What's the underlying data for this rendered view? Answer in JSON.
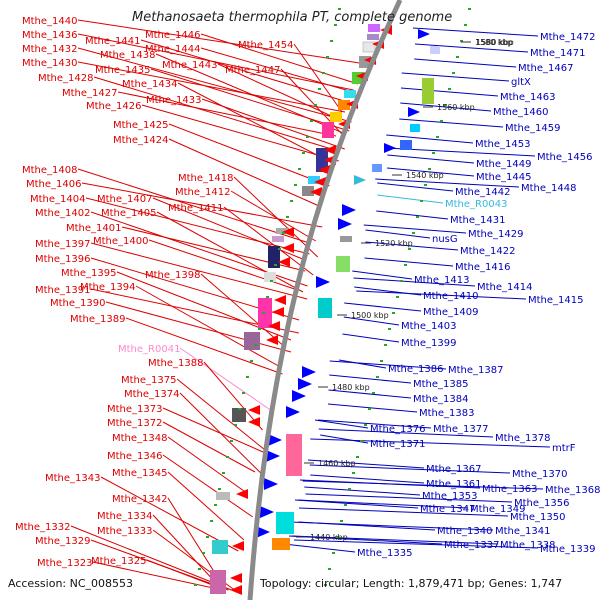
{
  "title": "Methanosaeta thermophila PT, complete genome",
  "footer": {
    "accession": "Accession: NC_008553",
    "topology": "Topology: circular; Length: 1,879,471 bp; Genes: 1,747"
  },
  "colors": {
    "forward_label": "#dd0000",
    "reverse_label": "#0000bb",
    "rna_forward_label": "#ff88cc",
    "rna_reverse_label": "#33bbdd",
    "backbone": "#8a8a8a",
    "tick": "#22aa22"
  },
  "kbp_ticks": [
    "1580 kbp",
    "1560 kbp",
    "1540 kbp",
    "1520 kbp",
    "1500 kbp",
    "1480 kbp",
    "1460 kbp",
    "1440 kbp"
  ],
  "left_labels": [
    "Mthe_1440",
    "Mthe_1446",
    "Mthe_1436",
    "Mthe_1441",
    "Mthe_1454",
    "Mthe_1432",
    "Mthe_1438",
    "Mthe_1444",
    "Mthe_1430",
    "Mthe_1443",
    "Mthe_1435",
    "Mthe_1447",
    "Mthe_1428",
    "Mthe_1434",
    "Mthe_1427",
    "Mthe_1433",
    "Mthe_1426",
    "Mthe_1425",
    "Mthe_1424",
    "Mthe_1408",
    "Mthe_1418",
    "Mthe_1406",
    "Mthe_1412",
    "Mthe_1404",
    "Mthe_1407",
    "Mthe_1411",
    "Mthe_1402",
    "Mthe_1405",
    "Mthe_1401",
    "Mthe_1400",
    "Mthe_1397",
    "Mthe_1396",
    "Mthe_1395",
    "Mthe_1398",
    "Mthe_1394",
    "Mthe_1391",
    "Mthe_1390",
    "Mthe_1389",
    "Mthe_R0041",
    "Mthe_1388",
    "Mthe_1375",
    "Mthe_1374",
    "Mthe_1373",
    "Mthe_1372",
    "Mthe_1348",
    "Mthe_1346",
    "Mthe_1345",
    "Mthe_1343",
    "Mthe_1342",
    "Mthe_1334",
    "Mthe_1333",
    "Mthe_1332",
    "Mthe_1329",
    "Mthe_1325",
    "Mthe_1323"
  ],
  "right_labels": [
    "Mthe_1472",
    "1580 kbp",
    "Mthe_1471",
    "Mthe_1467",
    "gltX",
    "Mthe_1463",
    "Mthe_1460",
    "Mthe_1459",
    "Mthe_1453",
    "Mthe_1456",
    "Mthe_1449",
    "Mthe_1445",
    "Mthe_1448",
    "Mthe_1442",
    "Mthe_R0043",
    "Mthe_1431",
    "Mthe_1429",
    "nusG",
    "Mthe_1422",
    "Mthe_1416",
    "Mthe_1413",
    "Mthe_1414",
    "Mthe_1410",
    "Mthe_1415",
    "Mthe_1409",
    "Mthe_1403",
    "Mthe_1399",
    "Mthe_1386",
    "Mthe_1387",
    "Mthe_1385",
    "Mthe_1384",
    "Mthe_1383",
    "Mthe_1376",
    "Mthe_1377",
    "Mthe_1378",
    "Mthe_1371",
    "mtrF",
    "Mthe_1367",
    "Mthe_1370",
    "Mthe_1361",
    "Mthe_1363",
    "Mthe_1368",
    "Mthe_1353",
    "Mthe_1356",
    "Mthe_1347",
    "Mthe_1349",
    "Mthe_1350",
    "Mthe_1340",
    "Mthe_1341",
    "Mthe_1337",
    "Mthe_1338",
    "Mthe_1339",
    "Mthe_1335"
  ]
}
